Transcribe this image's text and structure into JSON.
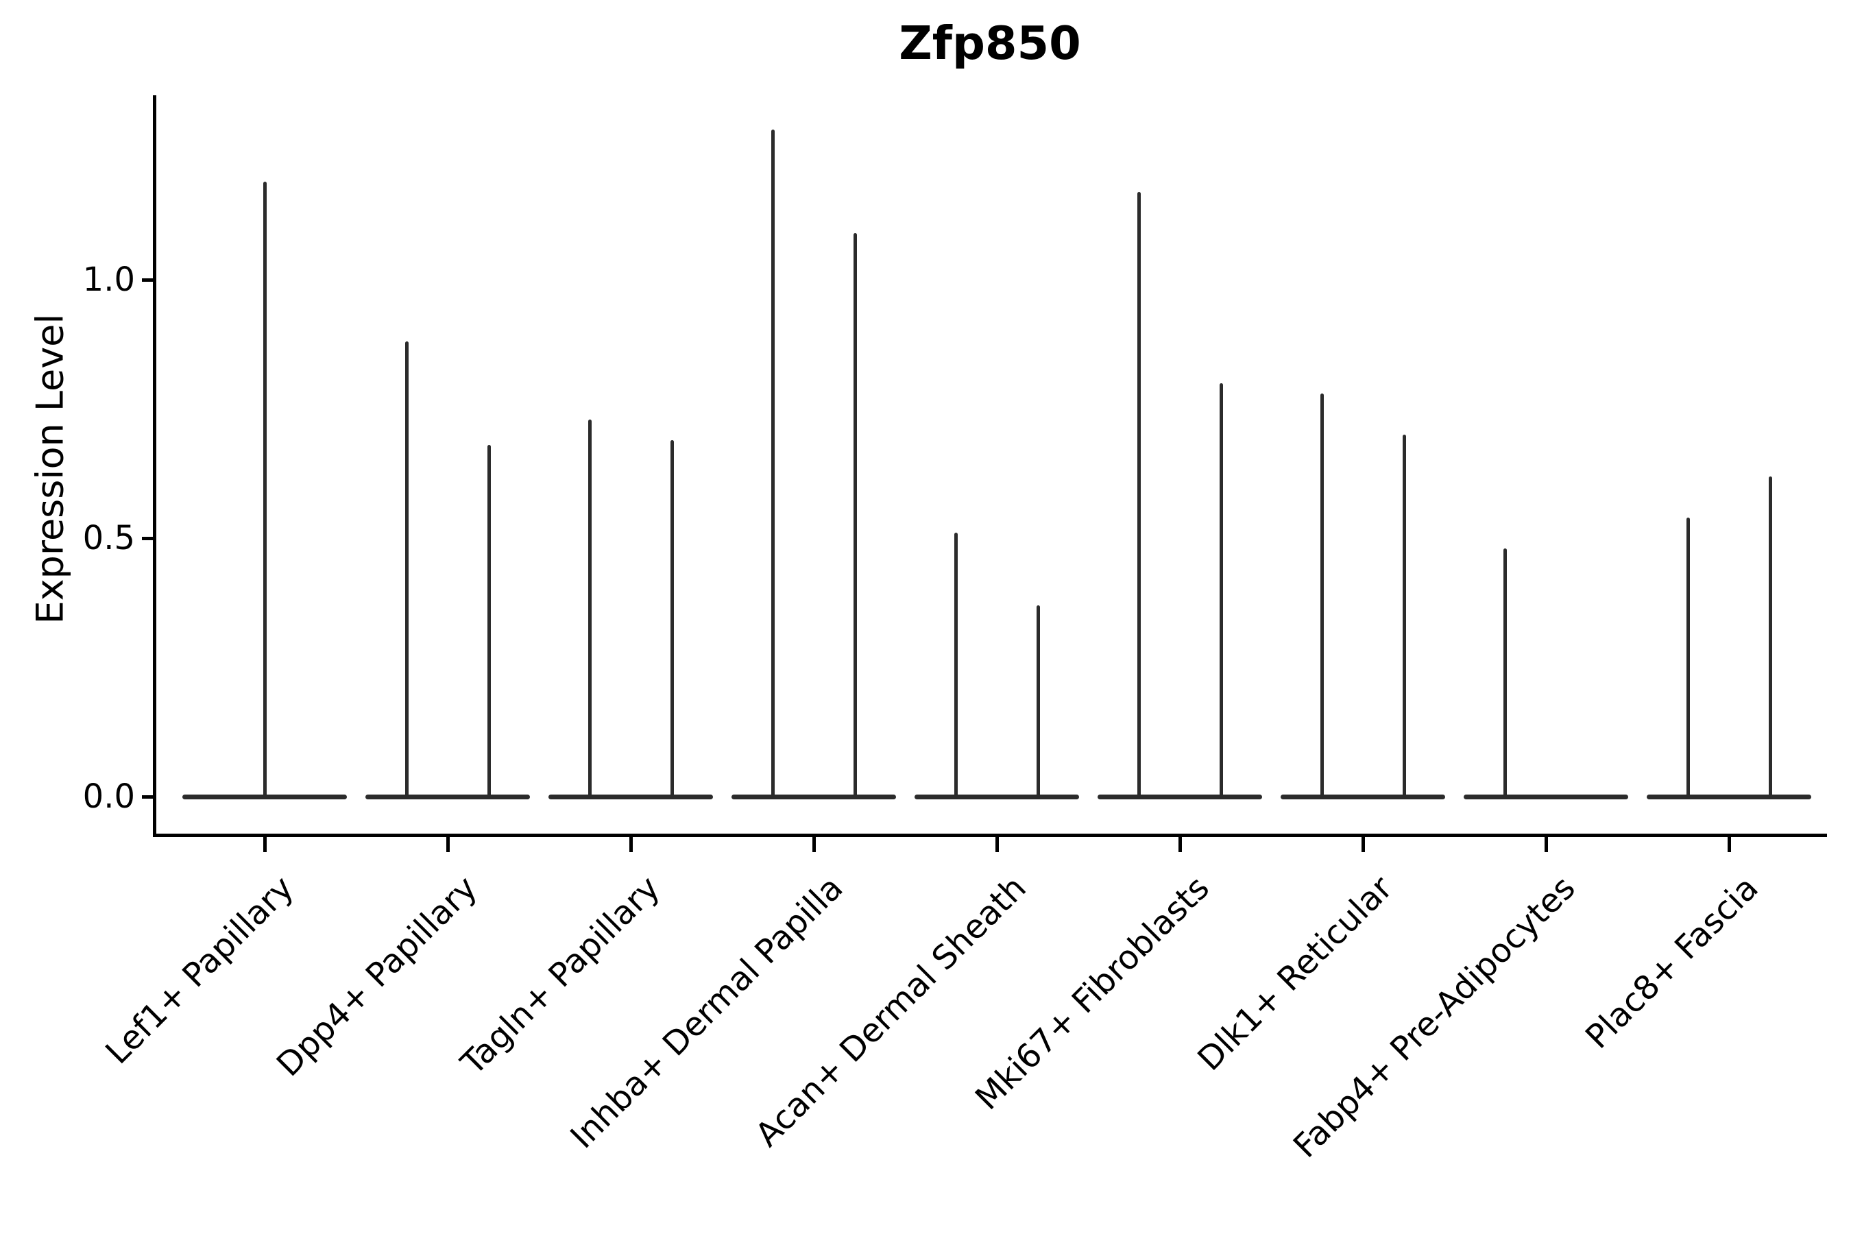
{
  "title": "Zfp850",
  "chart_data": {
    "type": "violin",
    "title": "Zfp850",
    "xlabel": "",
    "ylabel": "Expression Level",
    "yticks": [
      0.0,
      0.5,
      1.0
    ],
    "yticklabels": [
      "0.0",
      "0.5",
      "1.0"
    ],
    "ylim": [
      0,
      1.36
    ],
    "grid": false,
    "legend": "none",
    "categories": [
      "Lef1+ Papillary",
      "Dpp4+ Papillary",
      "Tagln+ Papillary",
      "Inhba+ Dermal Papilla",
      "Acan+ Dermal Sheath",
      "Mki67+ Fibroblasts",
      "Dlk1+ Reticular",
      "Fabp4+ Pre-Adipocytes",
      "Plac8+ Fascia"
    ],
    "groups": [
      {
        "category": "Lef1+ Papillary",
        "violins": [
          {
            "position": "center",
            "peak": 1.19
          }
        ]
      },
      {
        "category": "Dpp4+ Papillary",
        "violins": [
          {
            "position": "left",
            "peak": 0.88
          },
          {
            "position": "right",
            "peak": 0.68
          }
        ]
      },
      {
        "category": "Tagln+ Papillary",
        "violins": [
          {
            "position": "left",
            "peak": 0.73
          },
          {
            "position": "right",
            "peak": 0.69
          }
        ]
      },
      {
        "category": "Inhba+ Dermal Papilla",
        "violins": [
          {
            "position": "left",
            "peak": 1.29
          },
          {
            "position": "right",
            "peak": 1.09
          }
        ]
      },
      {
        "category": "Acan+ Dermal Sheath",
        "violins": [
          {
            "position": "left",
            "peak": 0.51
          },
          {
            "position": "right",
            "peak": 0.37
          }
        ]
      },
      {
        "category": "Mki67+ Fibroblasts",
        "violins": [
          {
            "position": "left",
            "peak": 1.17
          },
          {
            "position": "right",
            "peak": 0.8
          }
        ]
      },
      {
        "category": "Dlk1+ Reticular",
        "violins": [
          {
            "position": "left",
            "peak": 0.78
          },
          {
            "position": "right",
            "peak": 0.7
          }
        ]
      },
      {
        "category": "Fabp4+ Pre-Adipocytes",
        "violins": [
          {
            "position": "left",
            "peak": 0.48
          },
          {
            "position": "right",
            "peak": 0.0
          }
        ]
      },
      {
        "category": "Plac8+ Fascia",
        "violins": [
          {
            "position": "left",
            "peak": 0.54
          },
          {
            "position": "right",
            "peak": 0.62
          }
        ]
      }
    ],
    "colors": {
      "violin": "#2b2b2b",
      "axis": "#000000",
      "text": "#000000",
      "background": "#ffffff"
    }
  }
}
